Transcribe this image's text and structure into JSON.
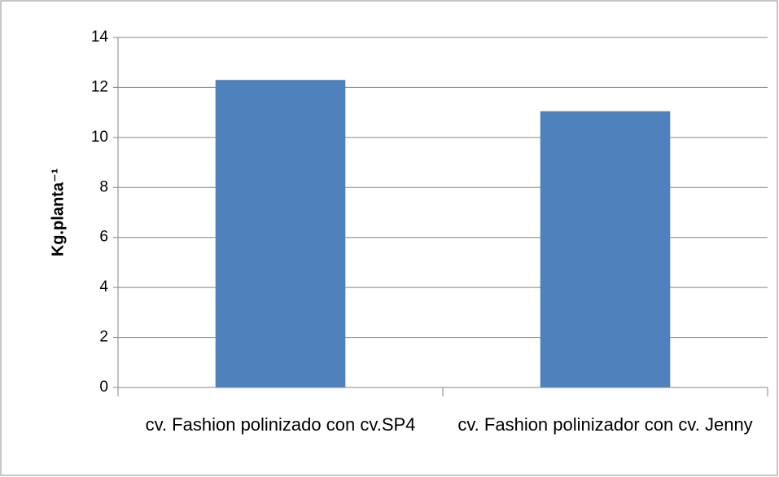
{
  "chart_data": {
    "type": "bar",
    "ylabel": "Kg.planta⁻¹",
    "categories": [
      "cv. Fashion polinizado con cv.SP4",
      "cv. Fashion polinizador con cv. Jenny"
    ],
    "values": [
      12.3,
      11.05
    ],
    "color": "#4f81bd",
    "ylim": [
      0,
      14
    ],
    "yticks": [
      0,
      2,
      4,
      6,
      8,
      10,
      12,
      14
    ],
    "grid": true
  }
}
